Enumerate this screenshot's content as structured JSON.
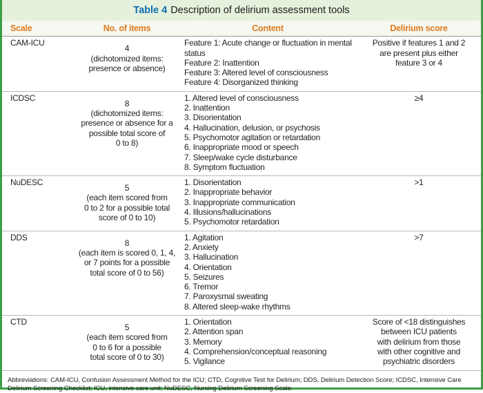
{
  "title": {
    "label": "Table 4",
    "text": "Description of delirium assessment tools"
  },
  "table": {
    "headers": [
      "Scale",
      "No. of items",
      "Content",
      "Delirium score"
    ],
    "rows": [
      [
        [
          "CAM-ICU"
        ],
        [
          "4",
          "(dichotomized items:",
          "presence or absence)"
        ],
        [
          "Feature 1: Acute change or fluctuation in mental status",
          "Feature 2: Inattention",
          "Feature 3: Altered level of consciousness",
          "Feature 4: Disorganized thinking"
        ],
        [
          "Positive if features 1 and 2",
          "are present plus either",
          "feature 3 or 4"
        ]
      ],
      [
        [
          "ICDSC"
        ],
        [
          "8",
          "(dichotomized items:",
          "presence or absence for a",
          "possible total score of",
          "0 to 8)"
        ],
        [
          "1. Altered level of consciousness",
          "2. Inattention",
          "3. Disorientation",
          "4. Hallucination, delusion, or psychosis",
          "5. Psychomotor agitation or retardation",
          "6. Inappropriate mood or speech",
          "7. Sleep/wake cycle disturbance",
          "8. Symptom fluctuation"
        ],
        [
          "≥4"
        ]
      ],
      [
        [
          "NuDESC"
        ],
        [
          "5",
          "(each item scored from",
          "0 to 2 for a possible total",
          "score of 0 to 10)"
        ],
        [
          "1. Disorientation",
          "2. Inappropriate behavior",
          "3. Inappropriate communication",
          "4. Illusions/hallucinations",
          "5. Psychomotor retardation"
        ],
        [
          ">1"
        ]
      ],
      [
        [
          "DDS"
        ],
        [
          "8",
          "(each item is scored 0, 1, 4,",
          "or 7 points for a possible",
          "total score of 0 to 56)"
        ],
        [
          "1. Agitation",
          "2. Anxiety",
          "3. Hallucination",
          "4. Orientation",
          "5. Seizures",
          "6. Tremor",
          "7. Paroxysmal sweating",
          "8. Altered sleep-wake rhythms"
        ],
        [
          ">7"
        ]
      ],
      [
        [
          "CTD"
        ],
        [
          "5",
          "(each item scored from",
          "0 to 6 for a possible",
          "total score of 0 to 30)"
        ],
        [
          "1. Orientation",
          "2. Attention span",
          "3. Memory",
          "4. Comprehension/conceptual reasoning",
          "5. Vigilance"
        ],
        [
          "Score of <18 distinguishes",
          "between ICU patients",
          "with delirium from those",
          "with other cognitive and",
          "psychiatric disorders"
        ]
      ]
    ]
  },
  "footnote": "Abbreviations: CAM-ICU, Confusion Assessment Method for the ICU; CTD, Cognitive Test for Delirium; DDS, Delirium Detection Score; ICDSC, Intensive Care Delirium Screening Checklist; ICU, intensive care unit; NuDESC, Nursing Delirium Screening Scale."
}
